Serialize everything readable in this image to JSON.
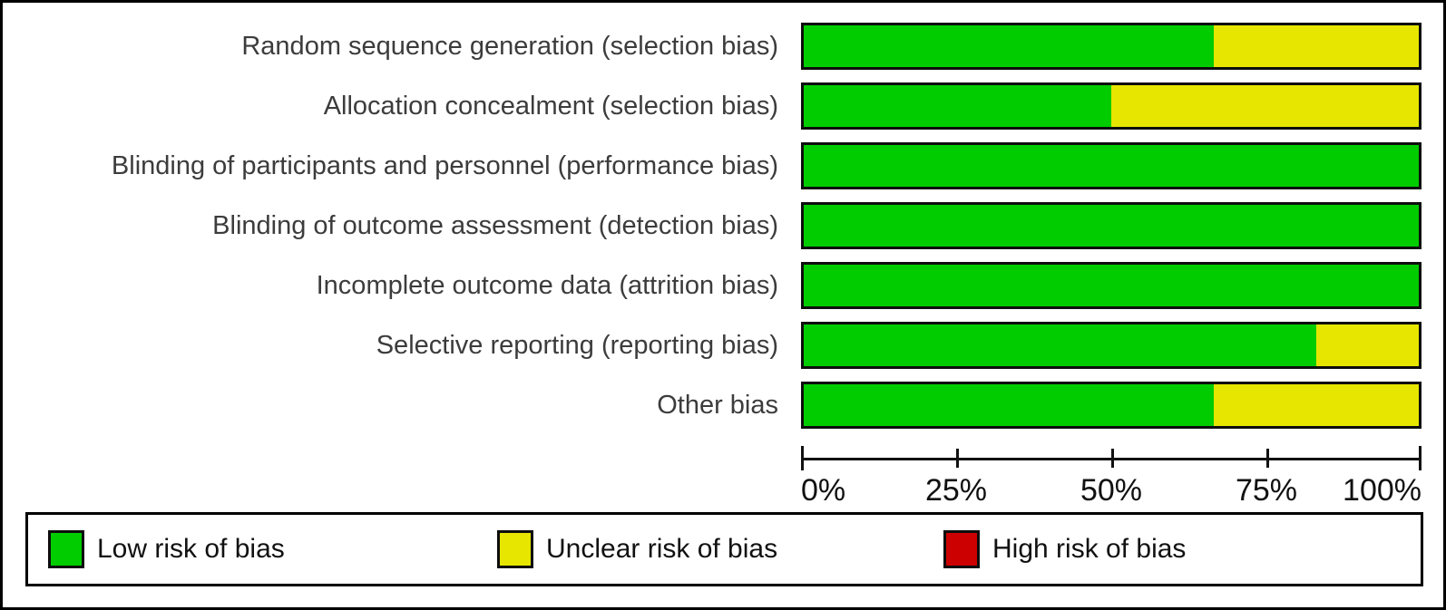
{
  "chart_data": {
    "type": "bar",
    "orientation": "horizontal",
    "stacked": true,
    "unit": "percent",
    "categories": [
      "Random sequence generation (selection bias)",
      "Allocation concealment (selection bias)",
      "Blinding of participants and personnel (performance bias)",
      "Blinding of outcome assessment (detection bias)",
      "Incomplete outcome data (attrition bias)",
      "Selective reporting (reporting bias)",
      "Other bias"
    ],
    "series": [
      {
        "name": "Low risk of bias",
        "color": "#00CC00",
        "values": [
          66.7,
          50,
          100,
          100,
          100,
          83.3,
          66.7
        ]
      },
      {
        "name": "Unclear risk of bias",
        "color": "#E6E600",
        "values": [
          33.3,
          50,
          0,
          0,
          0,
          16.7,
          33.3
        ]
      },
      {
        "name": "High risk of bias",
        "color": "#CC0000",
        "values": [
          0,
          0,
          0,
          0,
          0,
          0,
          0
        ]
      }
    ],
    "xlabel": "",
    "ylabel": "",
    "x_axis": {
      "range": [
        0,
        100
      ],
      "tick_values": [
        0,
        25,
        50,
        75,
        100
      ],
      "tick_labels": [
        "0%",
        "25%",
        "50%",
        "75%",
        "100%"
      ],
      "grid": false
    },
    "legend_position": "bottom"
  },
  "legend": {
    "items": [
      {
        "label": "Low risk of bias",
        "color": "#00CC00"
      },
      {
        "label": "Unclear risk of bias",
        "color": "#E6E600"
      },
      {
        "label": "High risk of bias",
        "color": "#CC0000"
      }
    ]
  }
}
